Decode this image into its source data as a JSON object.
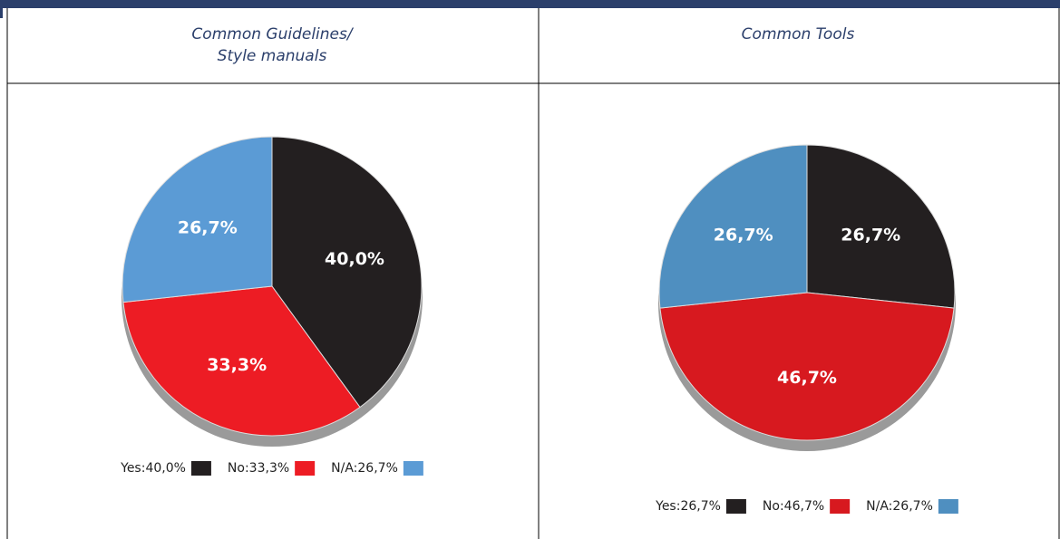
{
  "table": {
    "headers": [
      [
        "Common Guidelines/",
        "Style manuals"
      ],
      [
        "Common Tools"
      ]
    ]
  },
  "chart_data": [
    {
      "type": "pie",
      "labels": [
        "Yes:40,0%",
        "No:33,3%",
        "N/A:26,7%"
      ],
      "values": [
        40.0,
        33.3,
        26.7
      ],
      "value_labels": [
        "40,0%",
        "33,3%",
        "26,7%"
      ],
      "colors": [
        "#231f20",
        "#ed1c24",
        "#5b9bd5"
      ]
    },
    {
      "type": "pie",
      "labels": [
        "Yes:26,7%",
        "No:46,7%",
        "N/A:26,7%"
      ],
      "values": [
        26.7,
        46.7,
        26.7
      ],
      "value_labels": [
        "26,7%",
        "46,7%",
        "26,7%"
      ],
      "colors": [
        "#231f20",
        "#d7191f",
        "#4f8fc0"
      ]
    }
  ]
}
